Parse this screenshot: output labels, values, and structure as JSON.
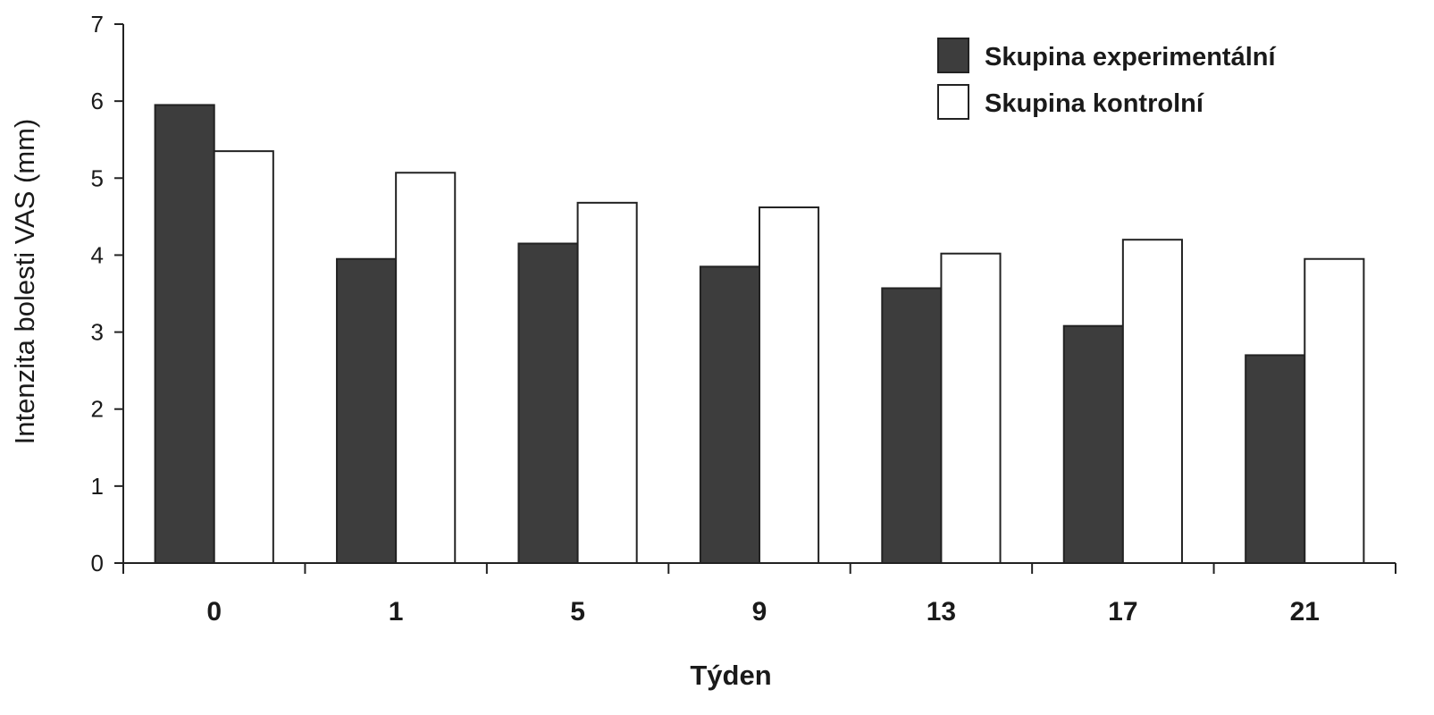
{
  "chart_data": {
    "type": "bar",
    "title": "",
    "xlabel": "Týden",
    "ylabel": "Intenzita bolesti VAS (mm)",
    "categories": [
      "0",
      "1",
      "5",
      "9",
      "13",
      "17",
      "21"
    ],
    "series": [
      {
        "name": "Skupina experimentální",
        "color": "#3d3d3d",
        "values": [
          5.95,
          3.95,
          4.15,
          3.85,
          3.57,
          3.08,
          2.7
        ]
      },
      {
        "name": "Skupina kontrolní",
        "color": "#ffffff",
        "values": [
          5.35,
          5.07,
          4.68,
          4.62,
          4.02,
          4.2,
          3.95
        ]
      }
    ],
    "ylim": [
      0,
      7
    ],
    "yticks": [
      0,
      1,
      2,
      3,
      4,
      5,
      6,
      7
    ],
    "grid": false,
    "legend_position": "top-right"
  }
}
